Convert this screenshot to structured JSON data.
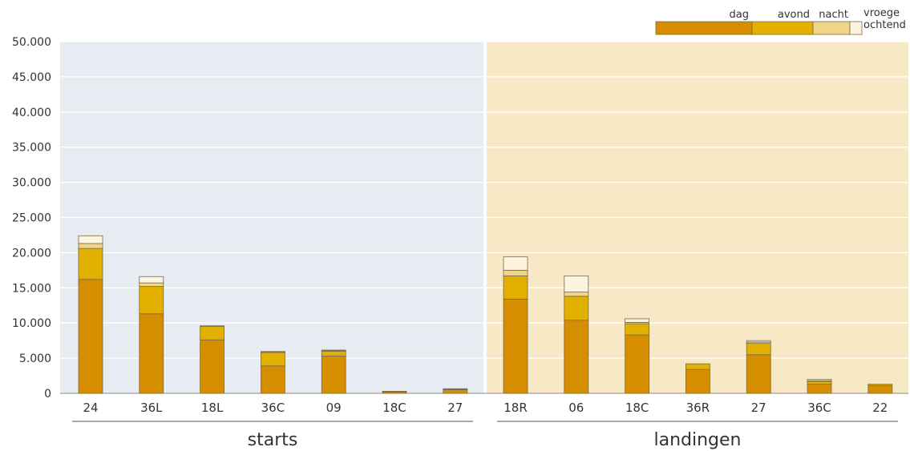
{
  "chart_data": {
    "type": "bar",
    "stacked": true,
    "ylim": [
      0,
      50000
    ],
    "yticks": [
      "0",
      "5.000",
      "10.000",
      "15.000",
      "20.000",
      "25.000",
      "30.000",
      "35.000",
      "40.000",
      "45.000",
      "50.000"
    ],
    "ytick_values": [
      0,
      5000,
      10000,
      15000,
      20000,
      25000,
      30000,
      35000,
      40000,
      45000,
      50000
    ],
    "grid": true,
    "legend_position": "top-right",
    "segments": [
      {
        "name": "dag",
        "color": "#d48e00"
      },
      {
        "name": "avond",
        "color": "#e2b000"
      },
      {
        "name": "nacht",
        "color": "#f0d487"
      },
      {
        "name": "vroege ochtend",
        "color": "#fdf4e0"
      }
    ],
    "groups": [
      {
        "label": "starts",
        "background": "#e6ecf2",
        "categories": [
          "24",
          "36L",
          "18L",
          "36C",
          "09",
          "18C",
          "27"
        ],
        "values": {
          "dag": [
            16200,
            11300,
            7600,
            3900,
            5300,
            200,
            500
          ],
          "avond": [
            4400,
            3900,
            1900,
            1900,
            700,
            100,
            100
          ],
          "nacht": [
            700,
            500,
            100,
            100,
            100,
            0,
            50
          ],
          "vroege ochtend": [
            1100,
            900,
            0,
            50,
            50,
            0,
            0
          ]
        }
      },
      {
        "label": "landingen",
        "background": "#f7e9c5",
        "categories": [
          "18R",
          "06",
          "18C",
          "36R",
          "27",
          "36C",
          "22"
        ],
        "values": {
          "dag": [
            13400,
            10400,
            8300,
            3400,
            5500,
            1300,
            1100
          ],
          "avond": [
            3300,
            3400,
            1600,
            800,
            1600,
            400,
            200
          ],
          "nacht": [
            800,
            600,
            200,
            0,
            200,
            100,
            0
          ],
          "vroege ochtend": [
            1900,
            2300,
            500,
            0,
            200,
            200,
            0
          ]
        }
      }
    ]
  }
}
